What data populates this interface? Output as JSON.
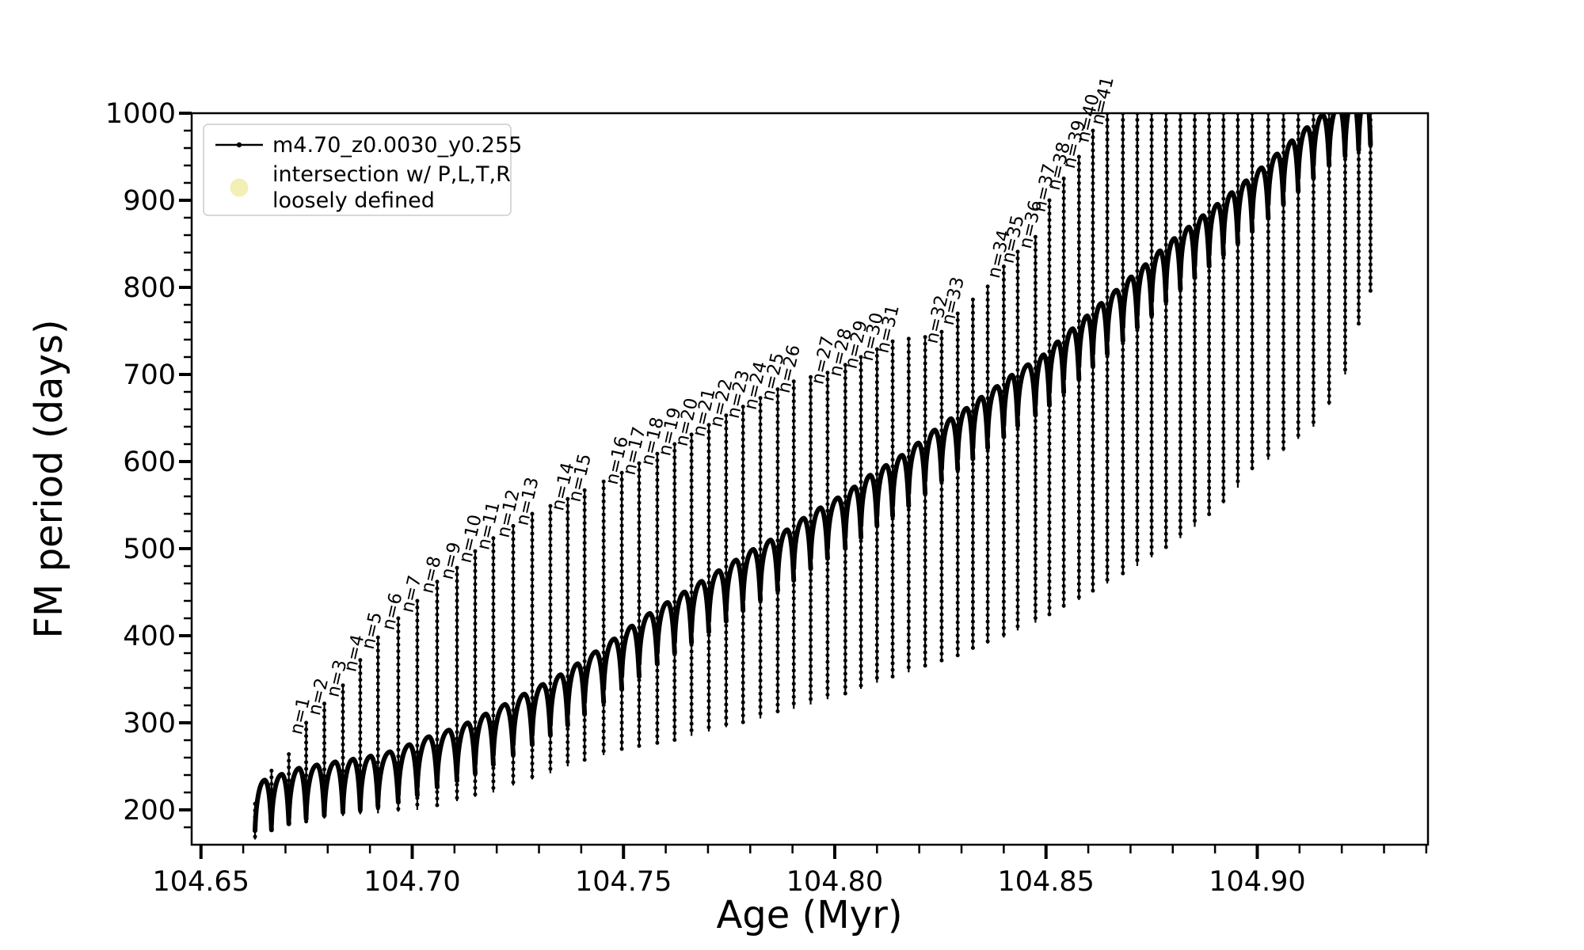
{
  "figure": {
    "background": "#ffffff"
  },
  "chart_data": {
    "type": "line",
    "title": "",
    "xlabel": "Age (Myr)",
    "ylabel": "FM period (days)",
    "xlim": [
      104.6478,
      104.9404
    ],
    "ylim": [
      160,
      1000
    ],
    "x_major_ticks": [
      104.65,
      104.7,
      104.75,
      104.8,
      104.85,
      104.9
    ],
    "x_minor_step": 0.01,
    "y_major_ticks": [
      200,
      300,
      400,
      500,
      600,
      700,
      800,
      900,
      1000
    ],
    "y_minor_step": 20,
    "grid": "off",
    "legend": {
      "position": "upper-left",
      "entry1": {
        "label": "m4.70_z0.0030_y0.255",
        "marker": "line-with-dot",
        "color": "#000000"
      },
      "entry2": {
        "label_line1": "intersection w/ P,L,T,R",
        "label_line2": "loosely defined",
        "marker": "circle",
        "color": "#f3efb5"
      }
    },
    "series_color": "#000000",
    "mode_crossing_spikes": [
      [
        104.6628,
        207,
        166,
        null
      ],
      [
        104.6667,
        245,
        177,
        null
      ],
      [
        104.6708,
        264,
        184,
        null
      ],
      [
        104.6749,
        300,
        186,
        1
      ],
      [
        104.6792,
        322,
        190,
        2
      ],
      [
        104.6836,
        343,
        193,
        3
      ],
      [
        104.6877,
        372,
        195,
        4
      ],
      [
        104.6919,
        398,
        196,
        5
      ],
      [
        104.6967,
        420,
        198,
        6
      ],
      [
        104.7012,
        440,
        200,
        7
      ],
      [
        104.7059,
        462,
        205,
        8
      ],
      [
        104.7106,
        478,
        210,
        9
      ],
      [
        104.7149,
        497,
        215,
        10
      ],
      [
        104.7192,
        512,
        220,
        11
      ],
      [
        104.7239,
        526,
        228,
        12
      ],
      [
        104.7284,
        540,
        235,
        13
      ],
      [
        104.7327,
        549,
        242,
        null
      ],
      [
        104.7368,
        557,
        250,
        14
      ],
      [
        104.7408,
        567,
        257,
        15
      ],
      [
        104.7453,
        577,
        263,
        null
      ],
      [
        104.7496,
        587,
        268,
        16
      ],
      [
        104.7537,
        598,
        272,
        17
      ],
      [
        104.758,
        609,
        276,
        18
      ],
      [
        104.7621,
        620,
        280,
        19
      ],
      [
        104.7661,
        631,
        285,
        20
      ],
      [
        104.7702,
        642,
        290,
        21
      ],
      [
        104.7743,
        653,
        295,
        22
      ],
      [
        104.7783,
        663,
        300,
        23
      ],
      [
        104.7824,
        673,
        305,
        24
      ],
      [
        104.7865,
        683,
        311,
        25
      ],
      [
        104.7903,
        692,
        316,
        26
      ],
      [
        104.7943,
        697,
        321,
        null
      ],
      [
        104.7983,
        702,
        327,
        27
      ],
      [
        104.8025,
        711,
        333,
        28
      ],
      [
        104.8062,
        720,
        339,
        29
      ],
      [
        104.81,
        729,
        346,
        30
      ],
      [
        104.8137,
        738,
        352,
        31
      ],
      [
        104.8175,
        741,
        358,
        null
      ],
      [
        104.8214,
        743,
        364,
        null
      ],
      [
        104.8253,
        749,
        370,
        32
      ],
      [
        104.8291,
        770,
        377,
        33
      ],
      [
        104.8327,
        786,
        384,
        null
      ],
      [
        104.8362,
        801,
        391,
        null
      ],
      [
        104.84,
        824,
        398,
        34
      ],
      [
        104.8433,
        841,
        406,
        35
      ],
      [
        104.8475,
        858,
        415,
        36
      ],
      [
        104.8508,
        900,
        423,
        37
      ],
      [
        104.8542,
        925,
        432,
        38
      ],
      [
        104.8578,
        950,
        441,
        39
      ],
      [
        104.8611,
        980,
        450,
        40
      ],
      [
        104.8645,
        1000,
        460,
        41
      ],
      [
        104.8682,
        1015,
        470,
        null
      ],
      [
        104.8716,
        1015,
        480,
        null
      ],
      [
        104.875,
        1015,
        490,
        null
      ],
      [
        104.8784,
        1015,
        500,
        null
      ],
      [
        104.8818,
        1015,
        512,
        null
      ],
      [
        104.8852,
        1015,
        525,
        null
      ],
      [
        104.8886,
        1015,
        538,
        null
      ],
      [
        104.892,
        1015,
        552,
        null
      ],
      [
        104.8954,
        1015,
        570,
        null
      ],
      [
        104.8988,
        1015,
        590,
        null
      ],
      [
        104.9026,
        1015,
        602,
        null
      ],
      [
        104.9062,
        1015,
        612,
        null
      ],
      [
        104.9097,
        1015,
        626,
        null
      ],
      [
        104.9133,
        1015,
        640,
        null
      ],
      [
        104.917,
        1015,
        665,
        null
      ],
      [
        104.9208,
        1015,
        700,
        null
      ],
      [
        104.924,
        1015,
        758,
        null
      ],
      [
        104.9268,
        1015,
        795,
        null
      ]
    ],
    "arch_top_envelope": [
      [
        104.663,
        232
      ],
      [
        104.667,
        237
      ],
      [
        104.671,
        246
      ],
      [
        104.675,
        250
      ],
      [
        104.68,
        254
      ],
      [
        104.684,
        257
      ],
      [
        104.688,
        260
      ],
      [
        104.692,
        264
      ],
      [
        104.697,
        270
      ],
      [
        104.701,
        280
      ],
      [
        104.706,
        288
      ],
      [
        104.711,
        296
      ],
      [
        104.715,
        305
      ],
      [
        104.719,
        315
      ],
      [
        104.724,
        327
      ],
      [
        104.728,
        338
      ],
      [
        104.733,
        350
      ],
      [
        104.737,
        362
      ],
      [
        104.741,
        375
      ],
      [
        104.745,
        388
      ],
      [
        104.75,
        405
      ],
      [
        104.754,
        420
      ],
      [
        104.758,
        432
      ],
      [
        104.762,
        444
      ],
      [
        104.766,
        456
      ],
      [
        104.77,
        468
      ],
      [
        104.774,
        480
      ],
      [
        104.778,
        492
      ],
      [
        104.782,
        504
      ],
      [
        104.787,
        516
      ],
      [
        104.79,
        528
      ],
      [
        104.794,
        540
      ],
      [
        104.798,
        552
      ],
      [
        104.803,
        565
      ],
      [
        104.806,
        578
      ],
      [
        104.81,
        590
      ],
      [
        104.814,
        602
      ],
      [
        104.818,
        615
      ],
      [
        104.821,
        628
      ],
      [
        104.825,
        642
      ],
      [
        104.829,
        655
      ],
      [
        104.833,
        668
      ],
      [
        104.836,
        680
      ],
      [
        104.84,
        692
      ],
      [
        104.843,
        705
      ],
      [
        104.848,
        718
      ],
      [
        104.851,
        730
      ],
      [
        104.854,
        745
      ],
      [
        104.858,
        760
      ],
      [
        104.861,
        775
      ],
      [
        104.865,
        790
      ],
      [
        104.868,
        805
      ],
      [
        104.872,
        820
      ],
      [
        104.878,
        848
      ],
      [
        104.885,
        875
      ],
      [
        104.892,
        902
      ],
      [
        104.899,
        930
      ],
      [
        104.906,
        960
      ],
      [
        104.913,
        990
      ],
      [
        104.917,
        1005
      ],
      [
        104.927,
        1025
      ]
    ],
    "spike_label_prefix": "n="
  }
}
